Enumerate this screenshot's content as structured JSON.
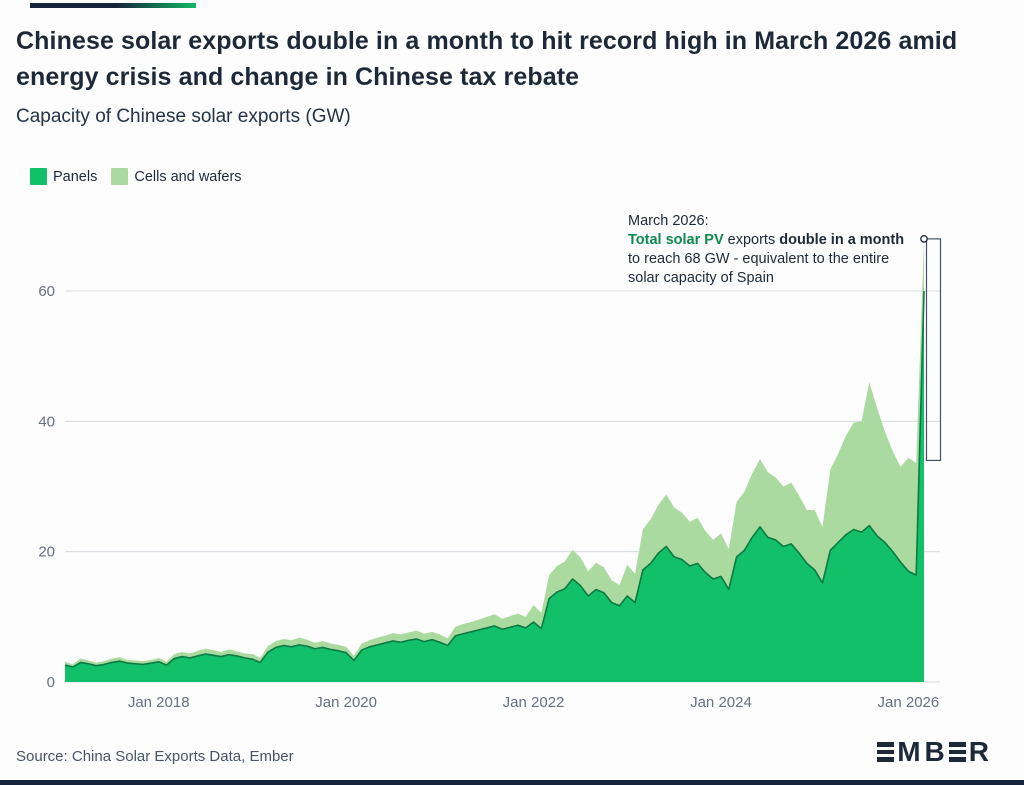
{
  "accent": {
    "top_bar_colors": [
      "#15243b",
      "#11b863"
    ],
    "bottom_bar_color": "#15243b"
  },
  "header": {
    "title": "Chinese solar exports double in a month to hit record high in March 2026 amid energy crisis and change in Chinese tax rebate",
    "subtitle": "Capacity of Chinese solar exports (GW)"
  },
  "legend": {
    "items": [
      {
        "label": "Panels",
        "color": "#12c06a"
      },
      {
        "label": "Cells and wafers",
        "color": "#abdaa0"
      }
    ]
  },
  "annotation": {
    "heading": "March 2026:",
    "seg_green": "Total solar PV",
    "seg_after_green": " exports ",
    "seg_bold": "double in a month",
    "seg_rest": " to reach 68 GW - equivalent to the entire solar capacity of Spain",
    "marker": {
      "month": "2026-03",
      "value": 68
    },
    "bracket": {
      "value_from": 34,
      "value_to": 68
    }
  },
  "chart_data": {
    "type": "area",
    "stacked": true,
    "title": "Capacity of Chinese solar exports (GW)",
    "xlabel": "",
    "ylabel": "GW",
    "ylim": [
      0,
      70
    ],
    "yticks": [
      0,
      20,
      40,
      60
    ],
    "grid": "horizontal",
    "legend_position": "top-left",
    "xticks": [
      "2018-01",
      "2020-01",
      "2022-01",
      "2024-01",
      "2026-01"
    ],
    "xtick_labels": [
      "Jan 2018",
      "Jan 2020",
      "Jan 2022",
      "Jan 2024",
      "Jan 2026"
    ],
    "x": [
      "2017-01",
      "2017-02",
      "2017-03",
      "2017-04",
      "2017-05",
      "2017-06",
      "2017-07",
      "2017-08",
      "2017-09",
      "2017-10",
      "2017-11",
      "2017-12",
      "2018-01",
      "2018-02",
      "2018-03",
      "2018-04",
      "2018-05",
      "2018-06",
      "2018-07",
      "2018-08",
      "2018-09",
      "2018-10",
      "2018-11",
      "2018-12",
      "2019-01",
      "2019-02",
      "2019-03",
      "2019-04",
      "2019-05",
      "2019-06",
      "2019-07",
      "2019-08",
      "2019-09",
      "2019-10",
      "2019-11",
      "2019-12",
      "2020-01",
      "2020-02",
      "2020-03",
      "2020-04",
      "2020-05",
      "2020-06",
      "2020-07",
      "2020-08",
      "2020-09",
      "2020-10",
      "2020-11",
      "2020-12",
      "2021-01",
      "2021-02",
      "2021-03",
      "2021-04",
      "2021-05",
      "2021-06",
      "2021-07",
      "2021-08",
      "2021-09",
      "2021-10",
      "2021-11",
      "2021-12",
      "2022-01",
      "2022-02",
      "2022-03",
      "2022-04",
      "2022-05",
      "2022-06",
      "2022-07",
      "2022-08",
      "2022-09",
      "2022-10",
      "2022-11",
      "2022-12",
      "2023-01",
      "2023-02",
      "2023-03",
      "2023-04",
      "2023-05",
      "2023-06",
      "2023-07",
      "2023-08",
      "2023-09",
      "2023-10",
      "2023-11",
      "2023-12",
      "2024-01",
      "2024-02",
      "2024-03",
      "2024-04",
      "2024-05",
      "2024-06",
      "2024-07",
      "2024-08",
      "2024-09",
      "2024-10",
      "2024-11",
      "2024-12",
      "2025-01",
      "2025-02",
      "2025-03",
      "2025-04",
      "2025-05",
      "2025-06",
      "2025-07",
      "2025-08",
      "2025-09",
      "2025-10",
      "2025-11",
      "2025-12",
      "2026-01",
      "2026-02",
      "2026-03"
    ],
    "series": [
      {
        "name": "Panels",
        "color": "#12c06a",
        "outline_color": "#0b7a43",
        "values": [
          2.6,
          2.3,
          3.0,
          2.8,
          2.5,
          2.7,
          3.0,
          3.2,
          2.9,
          2.8,
          2.7,
          2.9,
          3.1,
          2.6,
          3.6,
          3.9,
          3.7,
          4.0,
          4.3,
          4.1,
          3.9,
          4.2,
          4.0,
          3.7,
          3.5,
          3.0,
          4.6,
          5.3,
          5.6,
          5.4,
          5.7,
          5.5,
          5.1,
          5.3,
          5.0,
          4.8,
          4.5,
          3.3,
          4.9,
          5.4,
          5.7,
          6.0,
          6.3,
          6.1,
          6.4,
          6.6,
          6.2,
          6.5,
          6.1,
          5.6,
          7.1,
          7.4,
          7.7,
          8.0,
          8.3,
          8.6,
          8.1,
          8.4,
          8.7,
          8.3,
          9.2,
          8.2,
          12.8,
          13.8,
          14.3,
          15.8,
          14.8,
          13.2,
          14.2,
          13.7,
          12.2,
          11.7,
          13.2,
          12.2,
          17.2,
          18.2,
          19.8,
          20.8,
          19.2,
          18.8,
          17.8,
          18.2,
          16.8,
          15.8,
          16.2,
          14.2,
          19.2,
          20.2,
          22.2,
          23.8,
          22.2,
          21.8,
          20.8,
          21.2,
          19.8,
          18.2,
          17.2,
          15.2,
          20.2,
          21.4,
          22.6,
          23.4,
          23.0,
          24.0,
          22.4,
          21.4,
          20.0,
          18.4,
          17.0,
          16.4,
          60.0
        ]
      },
      {
        "name": "Cells and wafers",
        "color": "#abdaa0",
        "values": [
          0.5,
          0.4,
          0.6,
          0.5,
          0.5,
          0.5,
          0.6,
          0.6,
          0.5,
          0.5,
          0.5,
          0.5,
          0.6,
          0.5,
          0.7,
          0.7,
          0.7,
          0.8,
          0.8,
          0.8,
          0.7,
          0.8,
          0.7,
          0.7,
          0.8,
          0.7,
          0.9,
          1.0,
          1.0,
          1.0,
          1.1,
          1.0,
          0.9,
          1.0,
          0.9,
          0.9,
          0.9,
          0.7,
          1.0,
          1.0,
          1.1,
          1.1,
          1.2,
          1.2,
          1.2,
          1.3,
          1.2,
          1.2,
          1.2,
          1.1,
          1.4,
          1.5,
          1.5,
          1.6,
          1.7,
          1.8,
          1.6,
          1.7,
          1.8,
          1.7,
          2.6,
          2.4,
          3.6,
          4.0,
          4.2,
          4.5,
          4.3,
          3.8,
          4.1,
          3.9,
          3.4,
          3.2,
          4.8,
          4.4,
          6.2,
          6.8,
          7.4,
          8.0,
          7.6,
          7.2,
          6.8,
          7.0,
          6.4,
          6.0,
          6.6,
          6.2,
          8.4,
          9.0,
          9.8,
          10.4,
          10.0,
          9.6,
          9.2,
          9.4,
          8.8,
          8.2,
          9.2,
          8.6,
          12.4,
          13.6,
          15.2,
          16.4,
          17.0,
          22.0,
          19.6,
          17.0,
          15.4,
          14.6,
          17.4,
          17.2,
          8.0
        ]
      }
    ]
  },
  "footer": {
    "source": "Source: China Solar Exports Data, Ember",
    "logo": "EMBER"
  }
}
